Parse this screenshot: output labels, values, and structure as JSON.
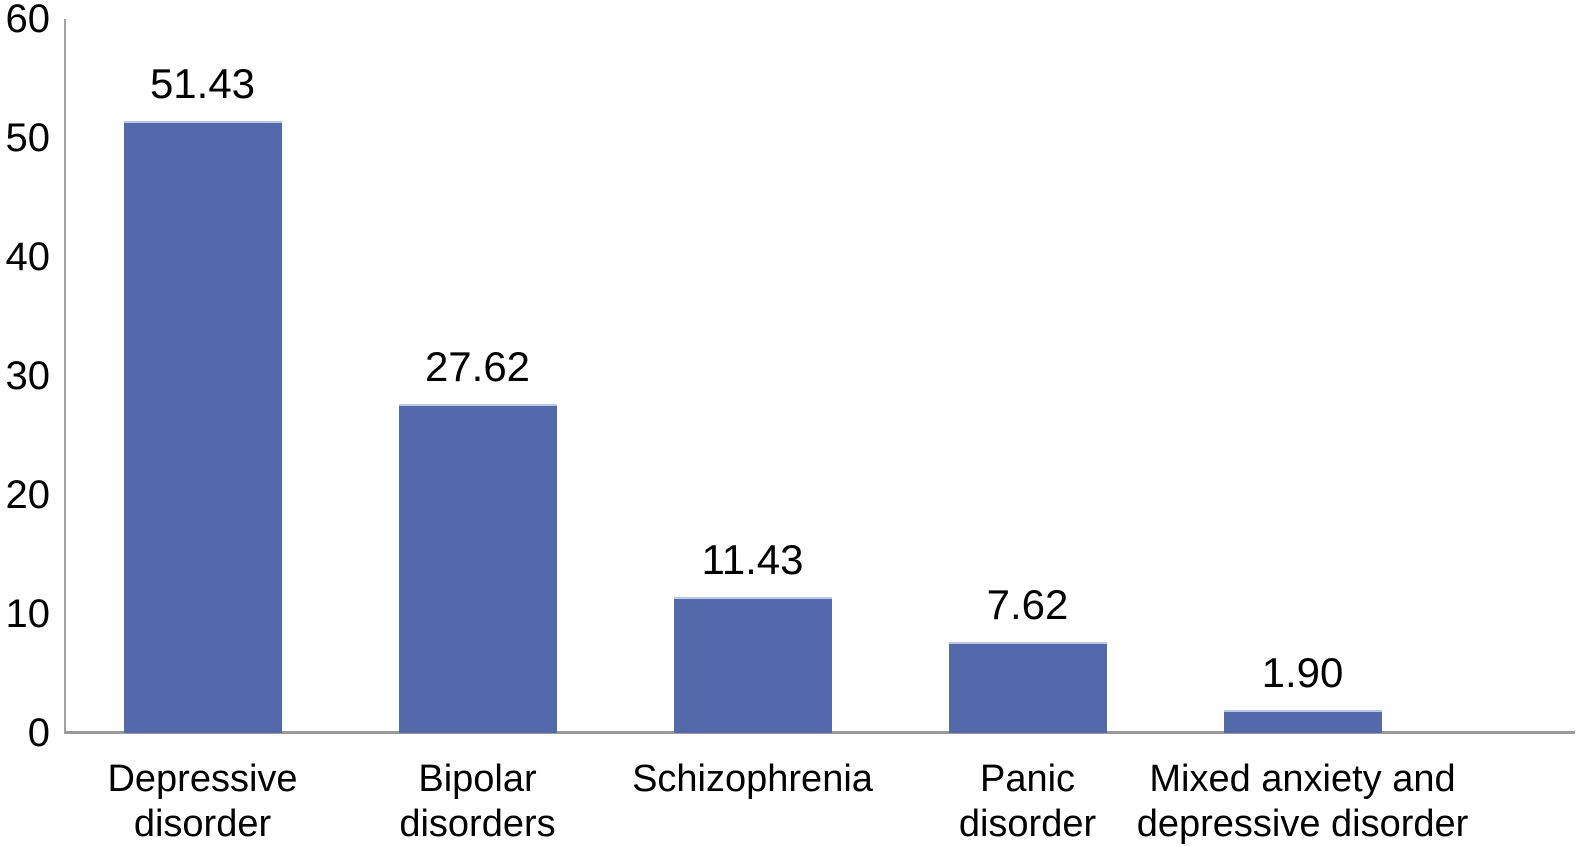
{
  "chart_data": {
    "type": "bar",
    "title": "",
    "xlabel": "",
    "ylabel": "",
    "categories": [
      "Depressive\ndisorder",
      "Bipolar\ndisorders",
      "Schizophrenia",
      "Panic\ndisorder",
      "Mixed anxiety and\ndepressive disorder"
    ],
    "values": [
      51.43,
      27.62,
      11.43,
      7.62,
      1.9
    ],
    "value_labels": [
      "51.43",
      "27.62",
      "11.43",
      "7.62",
      "1.90"
    ],
    "ylim": [
      0,
      60
    ],
    "yticks": [
      "0",
      "10",
      "20",
      "30",
      "40",
      "50",
      "60"
    ],
    "grid": false,
    "legend": false,
    "colors": {
      "bar_fill": "#5469ac",
      "bar_top_edge": "#bcc7e5",
      "axis_line": "#9a9a9a",
      "text": "#000000",
      "background": "#ffffff"
    }
  }
}
